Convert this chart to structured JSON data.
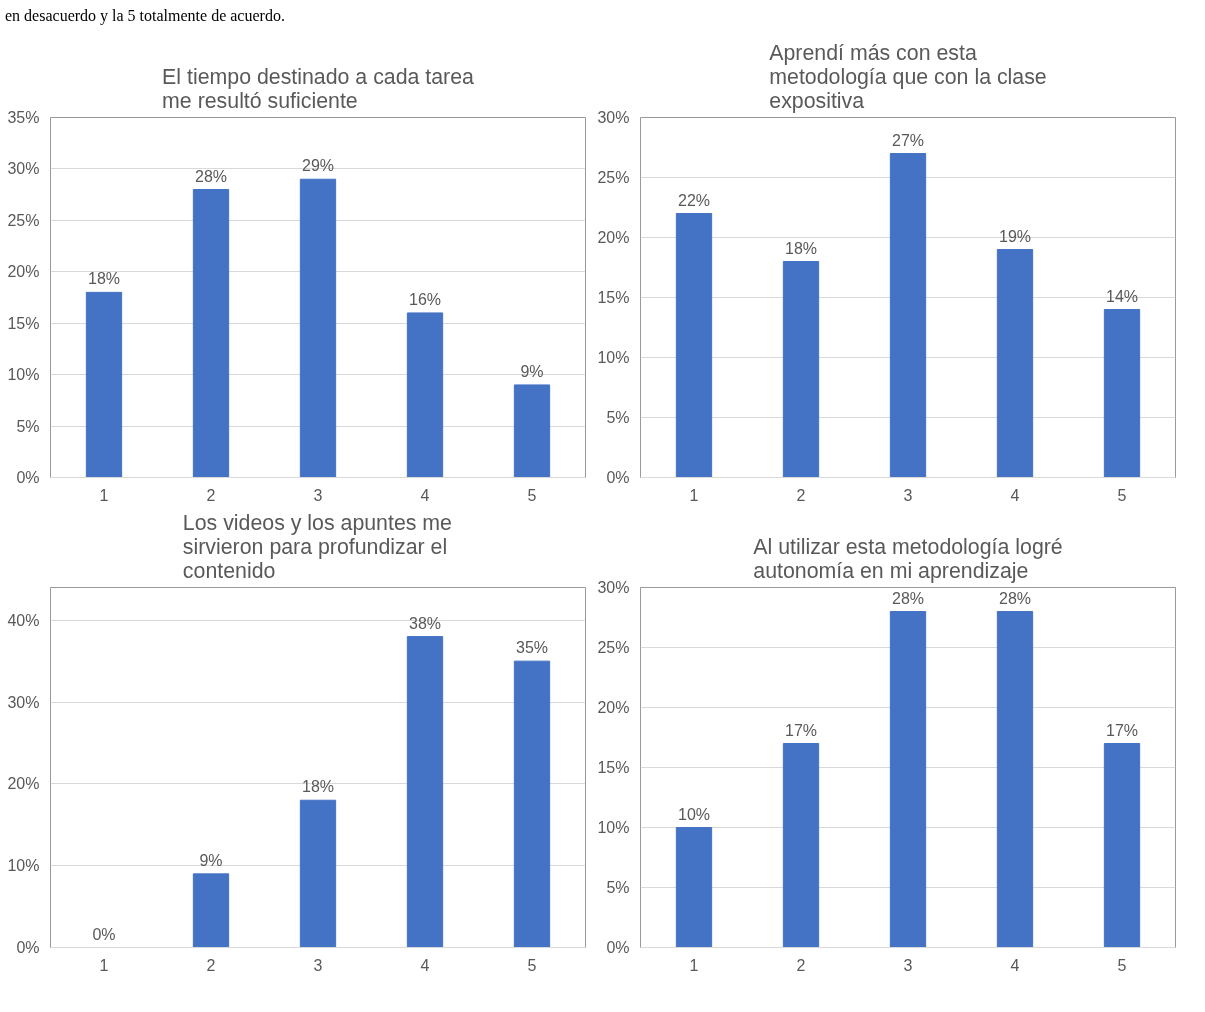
{
  "chart_data": [
    {
      "type": "bar",
      "title": "El tiempo destinado a cada tarea\nme resultó suficiente",
      "annotations": [
        "en desacuerdo y la 5 totalmente de acuerdo."
      ],
      "categories": [
        "1",
        "2",
        "3",
        "4",
        "5"
      ],
      "values": [
        18,
        28,
        29,
        16,
        9
      ],
      "value_labels": [
        "18%",
        "28%",
        "29%",
        "16%",
        "9%"
      ],
      "color": "#4472c4",
      "ylim": [
        0,
        35
      ],
      "yticks": [
        {
          "value": 0,
          "label": "0%"
        },
        {
          "value": 5,
          "label": "5%"
        },
        {
          "value": 10,
          "label": "10%"
        },
        {
          "value": 15,
          "label": "15%"
        },
        {
          "value": 20,
          "label": "20%"
        },
        {
          "value": 25,
          "label": "25%"
        },
        {
          "value": 30,
          "label": "30%"
        },
        {
          "value": 35,
          "label": "35%"
        }
      ],
      "grid": "y"
    },
    {
      "type": "bar",
      "title": "Aprendí más con esta\nmetodología que con la clase\nexpositiva",
      "categories": [
        "1",
        "2",
        "3",
        "4",
        "5"
      ],
      "values": [
        22,
        18,
        27,
        19,
        14
      ],
      "value_labels": [
        "22%",
        "18%",
        "27%",
        "19%",
        "14%"
      ],
      "color": "#4472c4",
      "ylim": [
        0,
        30
      ],
      "yticks": [
        {
          "value": 0,
          "label": "0%"
        },
        {
          "value": 5,
          "label": "5%"
        },
        {
          "value": 10,
          "label": "10%"
        },
        {
          "value": 15,
          "label": "15%"
        },
        {
          "value": 20,
          "label": "20%"
        },
        {
          "value": 25,
          "label": "25%"
        },
        {
          "value": 30,
          "label": "30%"
        }
      ],
      "grid": "y"
    },
    {
      "type": "bar",
      "title": "Los videos y los apuntes me\nsirvieron para profundizar  el\ncontenido",
      "categories": [
        "1",
        "2",
        "3",
        "4",
        "5"
      ],
      "values": [
        0,
        9,
        18,
        38,
        35
      ],
      "value_labels": [
        "0%",
        "9%",
        "18%",
        "38%",
        "35%"
      ],
      "color": "#4472c4",
      "ylim": [
        0,
        44
      ],
      "yticks": [
        {
          "value": 0,
          "label": "0%"
        },
        {
          "value": 10,
          "label": "10%"
        },
        {
          "value": 20,
          "label": "20%"
        },
        {
          "value": 30,
          "label": "30%"
        },
        {
          "value": 40,
          "label": "40%"
        }
      ],
      "grid": "y"
    },
    {
      "type": "bar",
      "title": "Al utilizar esta metodología logré\nautonomía en mi aprendizaje",
      "categories": [
        "1",
        "2",
        "3",
        "4",
        "5"
      ],
      "values": [
        10,
        17,
        28,
        28,
        17
      ],
      "value_labels": [
        "10%",
        "17%",
        "28%",
        "28%",
        "17%"
      ],
      "color": "#4472c4",
      "ylim": [
        0,
        30
      ],
      "yticks": [
        {
          "value": 0,
          "label": "0%"
        },
        {
          "value": 5,
          "label": "5%"
        },
        {
          "value": 10,
          "label": "10%"
        },
        {
          "value": 15,
          "label": "15%"
        },
        {
          "value": 20,
          "label": "20%"
        },
        {
          "value": 25,
          "label": "25%"
        },
        {
          "value": 30,
          "label": "30%"
        }
      ],
      "grid": "y"
    }
  ]
}
